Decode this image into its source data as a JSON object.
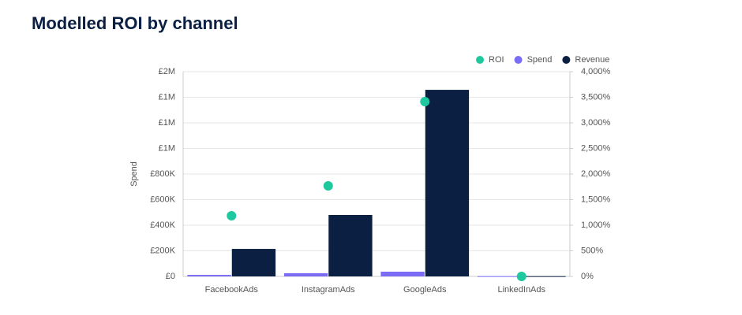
{
  "chart_data": {
    "type": "bar",
    "title": "Modelled ROI by channel",
    "y_label": "Spend",
    "categories": [
      "FacebookAds",
      "InstagramAds",
      "GoogleAds",
      "LinkedInAds"
    ],
    "series": [
      {
        "name": "ROI",
        "type": "scatter",
        "axis": "y2",
        "color": "#1ec9a0",
        "values": [
          1185,
          1770,
          3415,
          0
        ]
      },
      {
        "name": "Spend",
        "type": "bar",
        "color": "#7b6cf6",
        "values": [
          12000,
          25000,
          37000,
          2000
        ]
      },
      {
        "name": "Revenue",
        "type": "bar",
        "color": "#0b1f42",
        "values": [
          215000,
          480000,
          1458000,
          2000
        ]
      }
    ],
    "ylim": [
      0,
      1600000
    ],
    "yticks": [
      {
        "value": 0,
        "label": "£0"
      },
      {
        "value": 200000,
        "label": "£200K"
      },
      {
        "value": 400000,
        "label": "£400K"
      },
      {
        "value": 600000,
        "label": "£600K"
      },
      {
        "value": 800000,
        "label": "£800K"
      },
      {
        "value": 1000000,
        "label": "£1M"
      },
      {
        "value": 1200000,
        "label": "£1M"
      },
      {
        "value": 1400000,
        "label": "£1M"
      },
      {
        "value": 1600000,
        "label": "£2M"
      }
    ],
    "y2lim": [
      0,
      4000
    ],
    "y2ticks": [
      {
        "value": 0,
        "label": "0%"
      },
      {
        "value": 500,
        "label": "500%"
      },
      {
        "value": 1000,
        "label": "1,000%"
      },
      {
        "value": 1500,
        "label": "1,500%"
      },
      {
        "value": 2000,
        "label": "2,000%"
      },
      {
        "value": 2500,
        "label": "2,500%"
      },
      {
        "value": 3000,
        "label": "3,000%"
      },
      {
        "value": 3500,
        "label": "3,500%"
      },
      {
        "value": 4000,
        "label": "4,000%"
      }
    ],
    "grid": true,
    "legend": "top-right"
  }
}
